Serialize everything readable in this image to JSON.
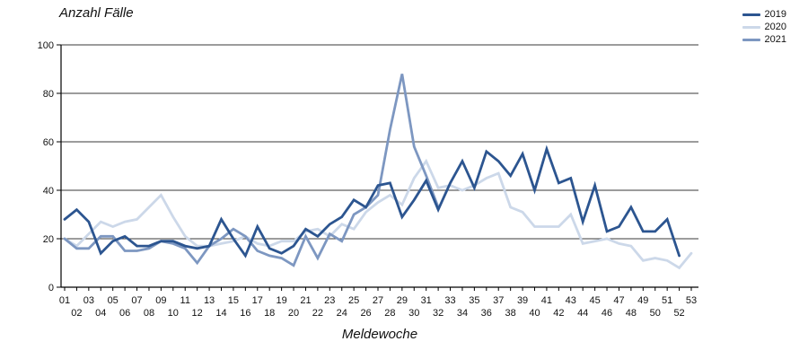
{
  "chart_data": {
    "type": "line",
    "title": "Anzahl Fälle",
    "xlabel": "Meldewoche",
    "ylabel": "",
    "ylim": [
      0,
      100
    ],
    "y_ticks": [
      0,
      20,
      40,
      60,
      80,
      100
    ],
    "grid": "horizontal",
    "legend_position": "top-right",
    "x_tick_labels": [
      "01",
      "02",
      "03",
      "04",
      "05",
      "06",
      "07",
      "08",
      "09",
      "10",
      "11",
      "12",
      "13",
      "14",
      "15",
      "16",
      "17",
      "18",
      "19",
      "20",
      "21",
      "22",
      "23",
      "24",
      "25",
      "26",
      "27",
      "28",
      "29",
      "30",
      "31",
      "32",
      "33",
      "34",
      "35",
      "36",
      "37",
      "38",
      "39",
      "40",
      "41",
      "42",
      "43",
      "44",
      "45",
      "46",
      "47",
      "48",
      "49",
      "50",
      "51",
      "52",
      "53"
    ],
    "series": [
      {
        "name": "2019",
        "color": "#2c5590",
        "values": [
          28,
          32,
          27,
          14,
          19,
          21,
          17,
          17,
          19,
          19,
          17,
          16,
          17,
          28,
          20,
          13,
          25,
          16,
          14,
          17,
          24,
          21,
          26,
          29,
          36,
          33,
          42,
          43,
          29,
          36,
          44,
          32,
          43,
          52,
          41,
          56,
          52,
          46,
          55,
          40,
          57,
          43,
          45,
          27,
          42,
          23,
          25,
          33,
          23,
          23,
          28,
          13
        ]
      },
      {
        "name": "2020",
        "color": "#ccd8e9",
        "values": [
          20,
          17,
          22,
          27,
          25,
          27,
          28,
          33,
          38,
          29,
          21,
          17,
          17,
          18,
          19,
          21,
          18,
          17,
          19,
          19,
          23,
          24,
          21,
          26,
          24,
          31,
          35,
          38,
          34,
          45,
          52,
          41,
          42,
          40,
          42,
          45,
          47,
          33,
          31,
          25,
          25,
          25,
          30,
          18,
          19,
          20,
          18,
          17,
          11,
          12,
          11,
          8,
          14
        ]
      },
      {
        "name": "2021",
        "color": "#7d97c1",
        "values": [
          20,
          16,
          16,
          21,
          21,
          15,
          15,
          16,
          19,
          18,
          16,
          10,
          17,
          20,
          24,
          21,
          15,
          13,
          12,
          9,
          21,
          12,
          22,
          19,
          30,
          33,
          38,
          65,
          88,
          58,
          46,
          33
        ]
      }
    ],
    "axis_color": "#000000",
    "gridline_color": "#3a3a3a",
    "tick_label_color": "#111111"
  }
}
